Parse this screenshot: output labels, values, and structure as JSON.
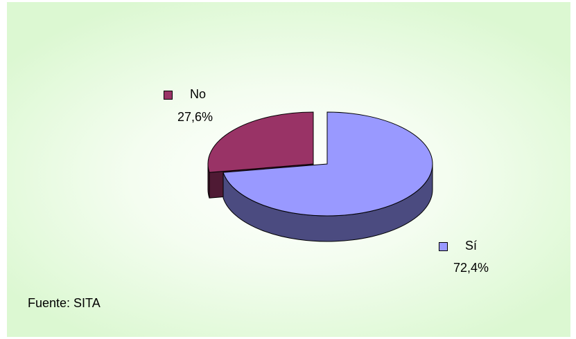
{
  "chart_data": {
    "type": "pie",
    "style": "3d-exploded",
    "slices": [
      {
        "label": "Sí",
        "value": 72.4,
        "value_label": "72,4%",
        "color": "#9999ff",
        "side_color": "#4b4b80"
      },
      {
        "label": "No",
        "value": 27.6,
        "value_label": "27,6%",
        "color": "#993366",
        "side_color": "#4f1a34"
      }
    ],
    "legend_placement": "labels beside slices"
  },
  "source": "Fuente: SITA"
}
